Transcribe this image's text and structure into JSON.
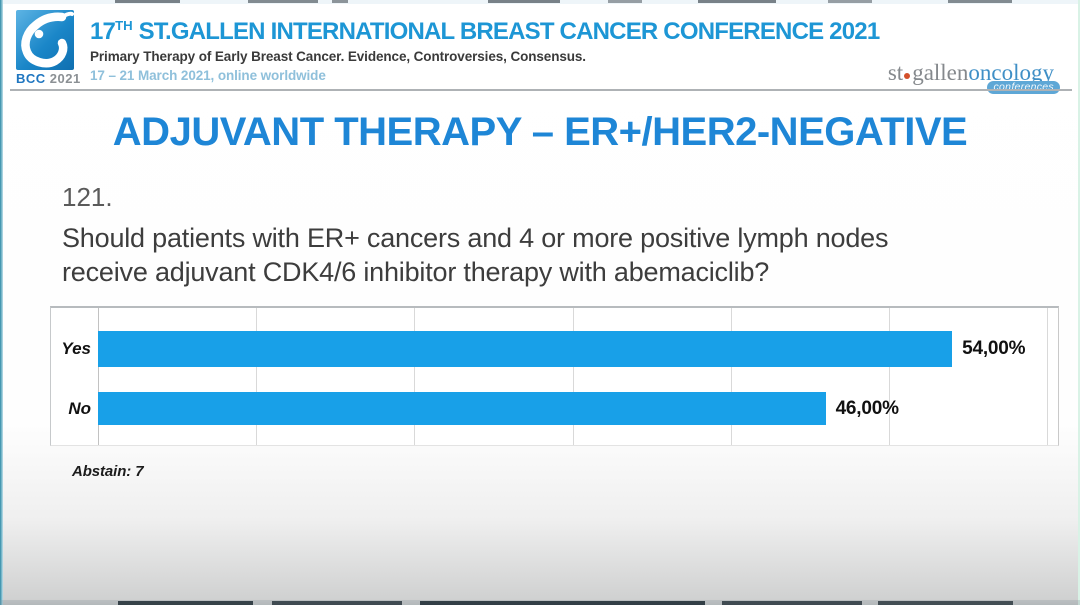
{
  "header": {
    "logo_caption_bcc": "BCC",
    "logo_caption_year": "2021",
    "title_prefix": "17",
    "title_sup": "TH",
    "title_rest": "ST.GALLEN INTERNATIONAL BREAST CANCER CONFERENCE 2021",
    "subtitle": "Primary Therapy of Early Breast Cancer. Evidence, Controversies, Consensus.",
    "dates": "17 – 21 March 2021, online worldwide",
    "org_logo": {
      "st": "st",
      "gallen": "gallen",
      "oncology": "oncology",
      "conferences": "conferences"
    }
  },
  "slide": {
    "title": "ADJUVANT THERAPY – ER+/HER2-NEGATIVE",
    "question_number": "121.",
    "question_lines": [
      "Should patients with ER+ cancers and 4 or more positive lymph nodes",
      "receive adjuvant CDK4/6 inhibitor therapy with abemaciclib?"
    ],
    "abstain": "Abstain: 7"
  },
  "chart_data": {
    "type": "bar",
    "orientation": "horizontal",
    "title": "",
    "categories": [
      "Yes",
      "No"
    ],
    "values": [
      54,
      46
    ],
    "value_labels": [
      "54,00%",
      "46,00%"
    ],
    "xlabel": "",
    "ylabel": "",
    "xlim": [
      0,
      60
    ],
    "gridline_step": 10,
    "grid": true,
    "legend": false,
    "bar_color": "#18A0E8",
    "abstain_count": 7
  },
  "colors": {
    "header_title_blue": "#1D96D5",
    "slide_title_blue": "#1E86D6",
    "bar_blue": "#18A0E8",
    "dates_light_blue": "#8FC0DB",
    "org_logo_gray": "#85898D",
    "org_logo_blue": "#3F8FC6",
    "org_dot_orange": "#D4502A",
    "conferences_badge_blue": "#5EA7D6",
    "subtitle_dark": "#3A3A3A"
  }
}
